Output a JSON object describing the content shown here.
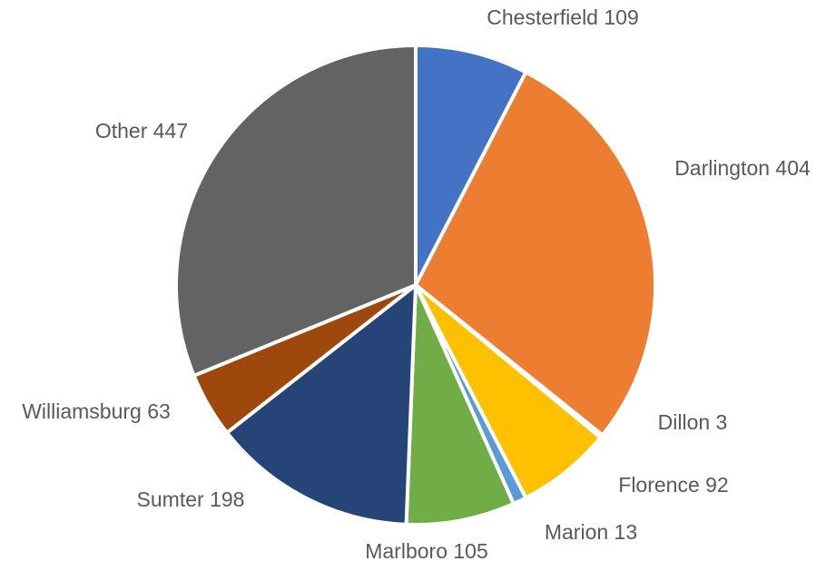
{
  "chart_data": {
    "type": "pie",
    "categories": [
      "Chesterfield",
      "Darlington",
      "Dillon",
      "Florence",
      "Marion",
      "Marlboro",
      "Sumter",
      "Williamsburg",
      "Other"
    ],
    "values": [
      109,
      404,
      3,
      92,
      13,
      105,
      198,
      63,
      447
    ],
    "labels": [
      "Chesterfield 109",
      "Darlington 404",
      "Dillon 3",
      "Florence 92",
      "Marion 13",
      "Marlboro 105",
      "Sumter 198",
      "Williamsburg 63",
      "Other 447"
    ],
    "colors": [
      "#4472C4",
      "#ED7D31",
      "#A5A5A5",
      "#FFC000",
      "#5B9BD5",
      "#70AD47",
      "#264478",
      "#9E480E",
      "#636363"
    ],
    "start_angle": "12 o'clock",
    "direction": "clockwise",
    "legend": "none",
    "data_labels": "outside"
  }
}
